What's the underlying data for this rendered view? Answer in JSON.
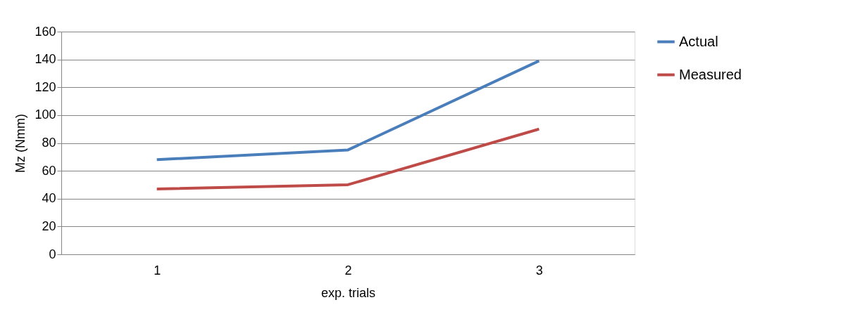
{
  "chart_data": {
    "type": "line",
    "xlabel": "exp. trials",
    "ylabel": "Mz (Nmm)",
    "categories": [
      "1",
      "2",
      "3"
    ],
    "series": [
      {
        "name": "Actual",
        "color": "#4a7ebb",
        "values": [
          68,
          75,
          139
        ]
      },
      {
        "name": "Measured",
        "color": "#be4b48",
        "values": [
          47,
          50,
          90
        ]
      }
    ],
    "ylim": [
      0,
      160
    ],
    "yticks": [
      0,
      20,
      40,
      60,
      80,
      100,
      120,
      140,
      160
    ],
    "grid": "y",
    "legend": "right",
    "marker": "none",
    "line_style": "solid"
  }
}
